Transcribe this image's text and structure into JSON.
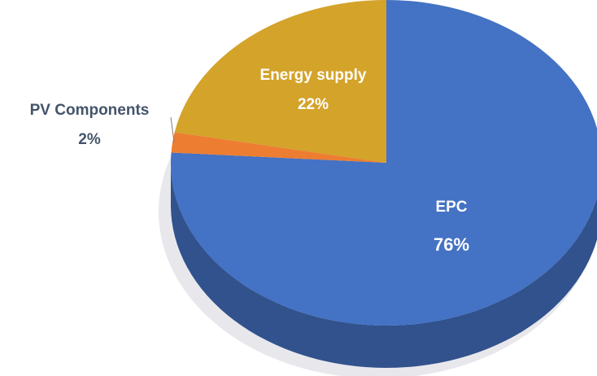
{
  "chart_data": {
    "type": "pie",
    "categories": [
      "EPC",
      "PV Components",
      "Energy supply"
    ],
    "values": [
      76,
      2,
      22
    ],
    "value_labels": [
      "76%",
      "2%",
      "22%"
    ],
    "colors": [
      "#4472c4",
      "#ed7d31",
      "#d4a32a"
    ]
  }
}
